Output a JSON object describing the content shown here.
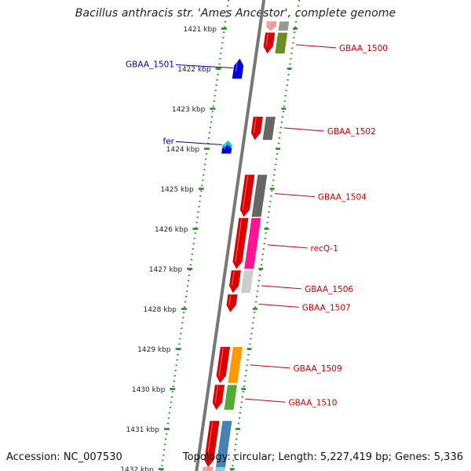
{
  "title": "Bacillus anthracis str. 'Ames Ancestor', complete genome",
  "footer": {
    "accession": "Accession: NC_007530",
    "summary": "Topology: circular; Length: 5,227,419 bp; Genes: 5,336"
  },
  "colors": {
    "backbone": "#888888",
    "forward_label": "#cc0000",
    "reverse_label": "#0000aa",
    "ruler": "#228822",
    "cds": "#dd0000",
    "reverse_cds": "#0000dd"
  },
  "scale_ticks": [
    {
      "kbp": 1421,
      "label": "1421 kbp"
    },
    {
      "kbp": 1422,
      "label": "1422 kbp"
    },
    {
      "kbp": 1423,
      "label": "1423 kbp"
    },
    {
      "kbp": 1424,
      "label": "1424 kbp"
    },
    {
      "kbp": 1425,
      "label": "1425 kbp"
    },
    {
      "kbp": 1426,
      "label": "1426 kbp"
    },
    {
      "kbp": 1427,
      "label": "1427 kbp"
    },
    {
      "kbp": 1428,
      "label": "1428 kbp"
    },
    {
      "kbp": 1429,
      "label": "1429 kbp"
    },
    {
      "kbp": 1430,
      "label": "1430 kbp"
    },
    {
      "kbp": 1431,
      "label": "1431 kbp"
    },
    {
      "kbp": 1432,
      "label": "1432 kbp"
    }
  ],
  "forward_genes": [
    {
      "start": 1420.82,
      "end": 1421.05,
      "color": "#ff9999",
      "cog_color": "#999999"
    },
    {
      "start": 1421.1,
      "end": 1421.62,
      "color": "#dd0000",
      "cog_color": "#6b8e23"
    },
    {
      "start": 1423.2,
      "end": 1423.78,
      "color": "#dd0000",
      "cog_color": "#666666"
    },
    {
      "start": 1424.65,
      "end": 1425.7,
      "color": "#dd0000",
      "cog_color": "#666666"
    },
    {
      "start": 1425.73,
      "end": 1427.0,
      "color": "#dd0000",
      "cog_color": "#ff1493"
    },
    {
      "start": 1427.04,
      "end": 1427.6,
      "color": "#dd0000",
      "cog_color": "#cccccc"
    },
    {
      "start": 1427.64,
      "end": 1428.08,
      "color": "#dd0000",
      "cog_color": null
    },
    {
      "start": 1428.95,
      "end": 1429.85,
      "color": "#dd0000",
      "cog_color": "#ff9900"
    },
    {
      "start": 1429.9,
      "end": 1430.52,
      "color": "#dd0000",
      "cog_color": "#55aa33"
    },
    {
      "start": 1430.8,
      "end": 1431.95,
      "color": "#dd0000",
      "cog_color": "#4682b4"
    },
    {
      "start": 1431.95,
      "end": 1432.2,
      "color": "#ff9999",
      "cog_color": "#87ceeb"
    }
  ],
  "reverse_genes": [
    {
      "start": 1421.75,
      "end": 1422.25,
      "color": "#0000dd"
    },
    {
      "start": 1423.8,
      "end": 1424.05,
      "color": "#00cccc"
    },
    {
      "start": 1423.9,
      "end": 1424.12,
      "color": "#0000dd"
    }
  ],
  "gene_labels": [
    {
      "text": "GBAA_1500",
      "kbp": 1421.4,
      "strand": "forward"
    },
    {
      "text": "GBAA_1501",
      "kbp": 1421.98,
      "strand": "reverse"
    },
    {
      "text": "GBAA_1502",
      "kbp": 1423.48,
      "strand": "forward"
    },
    {
      "text": "fer",
      "kbp": 1423.9,
      "strand": "reverse"
    },
    {
      "text": "GBAA_1504",
      "kbp": 1425.12,
      "strand": "forward"
    },
    {
      "text": "recQ-1",
      "kbp": 1426.4,
      "strand": "forward"
    },
    {
      "text": "GBAA_1506",
      "kbp": 1427.42,
      "strand": "forward"
    },
    {
      "text": "GBAA_1507",
      "kbp": 1427.88,
      "strand": "forward"
    },
    {
      "text": "GBAA_1509",
      "kbp": 1429.4,
      "strand": "forward"
    },
    {
      "text": "GBAA_1510",
      "kbp": 1430.25,
      "strand": "forward"
    }
  ]
}
